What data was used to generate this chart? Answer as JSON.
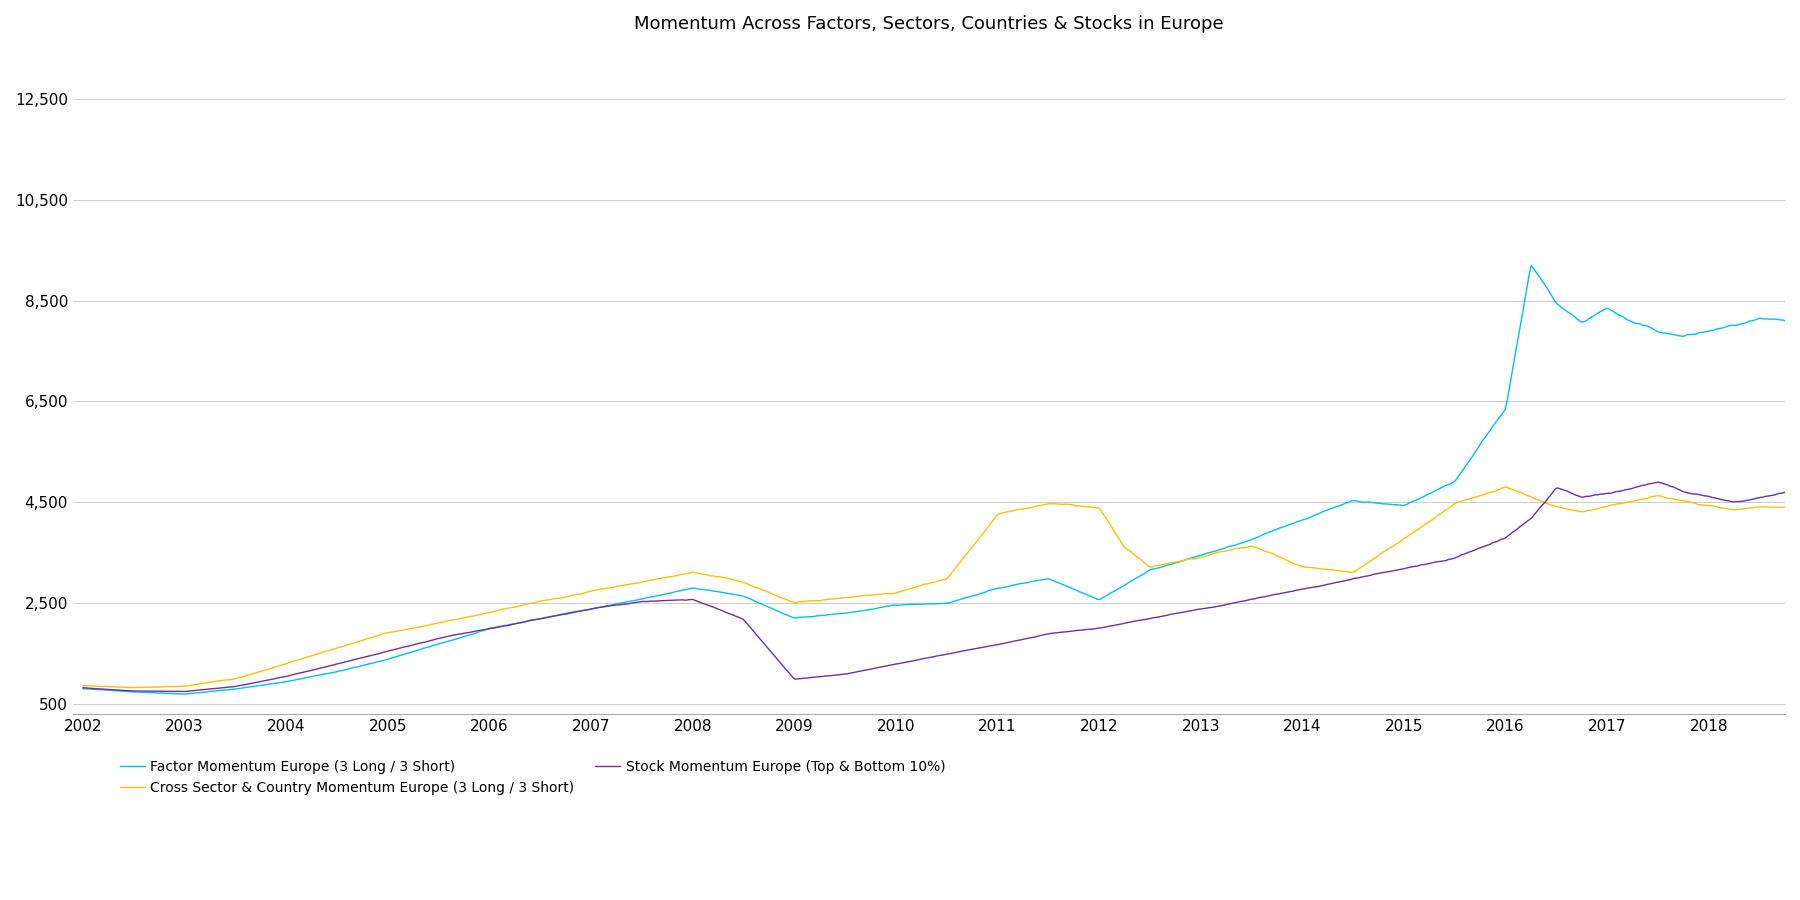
{
  "title": "Momentum Across Factors, Sectors, Countries & Stocks in Europe",
  "title_fontsize": 13,
  "yticks": [
    500,
    2500,
    4500,
    6500,
    8500,
    10500,
    12500
  ],
  "ylim": [
    300,
    13500
  ],
  "xlim_start": 2002.0,
  "xlim_end": 2018.75,
  "xtick_labels": [
    "2002",
    "2003",
    "2004",
    "2005",
    "2006",
    "2007",
    "2008",
    "2009",
    "2010",
    "2011",
    "2012",
    "2013",
    "2014",
    "2015",
    "2016",
    "2017",
    "2018"
  ],
  "xtick_positions": [
    2002,
    2003,
    2004,
    2005,
    2006,
    2007,
    2008,
    2009,
    2010,
    2011,
    2012,
    2013,
    2014,
    2015,
    2016,
    2017,
    2018
  ],
  "line_colors": [
    "#00BFFF",
    "#FFC000",
    "#7030A0"
  ],
  "line_width": 1.0,
  "legend_labels": [
    "Factor Momentum Europe (3 Long / 3 Short)",
    "Cross Sector & Country Momentum Europe (3 Long / 3 Short)",
    "Stock Momentum Europe (Top & Bottom 10%)"
  ],
  "background_color": "#FFFFFF",
  "factor_anchors": [
    [
      2002.0,
      800
    ],
    [
      2002.5,
      740
    ],
    [
      2003.0,
      700
    ],
    [
      2003.5,
      800
    ],
    [
      2004.0,
      950
    ],
    [
      2004.5,
      1150
    ],
    [
      2005.0,
      1400
    ],
    [
      2005.5,
      1700
    ],
    [
      2006.0,
      2000
    ],
    [
      2006.5,
      2200
    ],
    [
      2007.0,
      2400
    ],
    [
      2007.5,
      2600
    ],
    [
      2008.0,
      2800
    ],
    [
      2008.5,
      2650
    ],
    [
      2009.0,
      2200
    ],
    [
      2009.5,
      2300
    ],
    [
      2010.0,
      2450
    ],
    [
      2010.5,
      2500
    ],
    [
      2011.0,
      2800
    ],
    [
      2011.5,
      3000
    ],
    [
      2012.0,
      2600
    ],
    [
      2012.5,
      3200
    ],
    [
      2013.0,
      3500
    ],
    [
      2013.5,
      3800
    ],
    [
      2014.0,
      4200
    ],
    [
      2014.5,
      4600
    ],
    [
      2015.0,
      4500
    ],
    [
      2015.5,
      5000
    ],
    [
      2016.0,
      6500
    ],
    [
      2016.25,
      9400
    ],
    [
      2016.5,
      8600
    ],
    [
      2016.75,
      8200
    ],
    [
      2017.0,
      8500
    ],
    [
      2017.25,
      8200
    ],
    [
      2017.5,
      8000
    ],
    [
      2017.75,
      7900
    ],
    [
      2018.0,
      8000
    ],
    [
      2018.25,
      8100
    ],
    [
      2018.5,
      8200
    ],
    [
      2018.75,
      8100
    ]
  ],
  "cross_anchors": [
    [
      2002.0,
      860
    ],
    [
      2002.5,
      820
    ],
    [
      2003.0,
      850
    ],
    [
      2003.5,
      1000
    ],
    [
      2004.0,
      1300
    ],
    [
      2004.5,
      1600
    ],
    [
      2005.0,
      1900
    ],
    [
      2005.5,
      2100
    ],
    [
      2006.0,
      2300
    ],
    [
      2006.5,
      2500
    ],
    [
      2007.0,
      2700
    ],
    [
      2007.5,
      2900
    ],
    [
      2008.0,
      3100
    ],
    [
      2008.5,
      2900
    ],
    [
      2009.0,
      2500
    ],
    [
      2009.5,
      2600
    ],
    [
      2010.0,
      2700
    ],
    [
      2010.5,
      3000
    ],
    [
      2011.0,
      4300
    ],
    [
      2011.5,
      4500
    ],
    [
      2012.0,
      4400
    ],
    [
      2012.25,
      3600
    ],
    [
      2012.5,
      3200
    ],
    [
      2013.0,
      3400
    ],
    [
      2013.5,
      3600
    ],
    [
      2014.0,
      3200
    ],
    [
      2014.5,
      3100
    ],
    [
      2015.0,
      3800
    ],
    [
      2015.5,
      4500
    ],
    [
      2016.0,
      4800
    ],
    [
      2016.25,
      4600
    ],
    [
      2016.5,
      4400
    ],
    [
      2016.75,
      4300
    ],
    [
      2017.0,
      4400
    ],
    [
      2017.25,
      4500
    ],
    [
      2017.5,
      4600
    ],
    [
      2017.75,
      4500
    ],
    [
      2018.0,
      4400
    ],
    [
      2018.25,
      4300
    ],
    [
      2018.5,
      4400
    ],
    [
      2018.75,
      4400
    ]
  ],
  "stock_anchors": [
    [
      2002.0,
      820
    ],
    [
      2002.5,
      760
    ],
    [
      2003.0,
      750
    ],
    [
      2003.5,
      850
    ],
    [
      2004.0,
      1050
    ],
    [
      2004.5,
      1300
    ],
    [
      2005.0,
      1550
    ],
    [
      2005.5,
      1800
    ],
    [
      2006.0,
      2000
    ],
    [
      2006.5,
      2200
    ],
    [
      2007.0,
      2400
    ],
    [
      2007.5,
      2550
    ],
    [
      2008.0,
      2600
    ],
    [
      2008.5,
      2200
    ],
    [
      2009.0,
      1000
    ],
    [
      2009.5,
      1100
    ],
    [
      2010.0,
      1300
    ],
    [
      2010.5,
      1500
    ],
    [
      2011.0,
      1700
    ],
    [
      2011.5,
      1900
    ],
    [
      2012.0,
      2000
    ],
    [
      2012.5,
      2200
    ],
    [
      2013.0,
      2400
    ],
    [
      2013.5,
      2600
    ],
    [
      2014.0,
      2800
    ],
    [
      2014.5,
      3000
    ],
    [
      2015.0,
      3200
    ],
    [
      2015.5,
      3400
    ],
    [
      2016.0,
      3800
    ],
    [
      2016.25,
      4200
    ],
    [
      2016.5,
      4800
    ],
    [
      2016.75,
      4600
    ],
    [
      2017.0,
      4700
    ],
    [
      2017.25,
      4800
    ],
    [
      2017.5,
      4900
    ],
    [
      2017.75,
      4700
    ],
    [
      2018.0,
      4600
    ],
    [
      2018.25,
      4500
    ],
    [
      2018.5,
      4600
    ],
    [
      2018.75,
      4700
    ]
  ]
}
